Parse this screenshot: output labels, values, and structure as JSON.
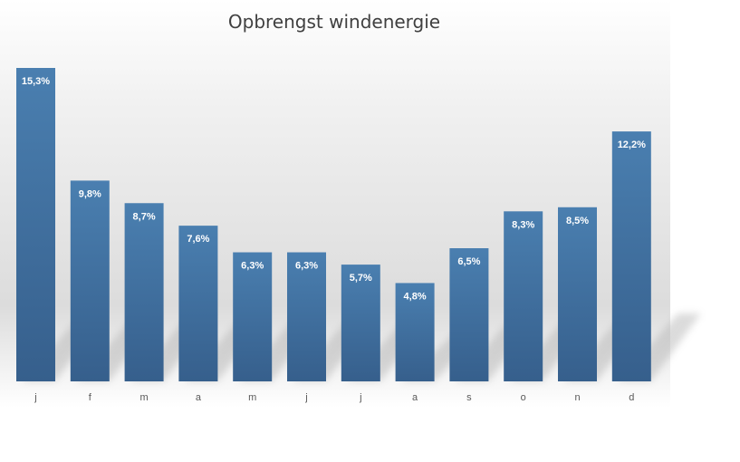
{
  "chart_data": {
    "type": "bar",
    "title": "Opbrengst windenergie",
    "xlabel": "",
    "ylabel": "",
    "categories": [
      "j",
      "f",
      "m",
      "a",
      "m",
      "j",
      "j",
      "a",
      "s",
      "o",
      "n",
      "d"
    ],
    "values": [
      15.3,
      9.8,
      8.7,
      7.6,
      6.3,
      6.3,
      5.7,
      4.8,
      6.5,
      8.3,
      8.5,
      12.2
    ],
    "value_labels": [
      "15,3%",
      "9,8%",
      "8,7%",
      "7,6%",
      "6,3%",
      "6,3%",
      "5,7%",
      "4,8%",
      "6,5%",
      "8,3%",
      "8,5%",
      "12,2%"
    ],
    "ylim": [
      0,
      16
    ],
    "grid": false,
    "legend": "none",
    "colors": {
      "bar_top": "#4a7fb0",
      "bar_bottom": "#365f8c",
      "label": "#ffffff",
      "title": "#404040"
    }
  }
}
